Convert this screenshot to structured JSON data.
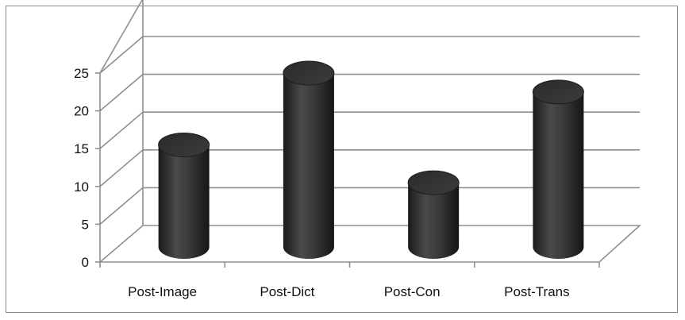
{
  "chart_data": {
    "type": "bar",
    "style": "3d-cylinder",
    "categories": [
      "Post-Image",
      "Post-Dict",
      "Post-Con",
      "Post-Trans"
    ],
    "values": [
      13.5,
      23,
      8.5,
      20.5
    ],
    "title": "",
    "xlabel": "",
    "ylabel": "",
    "ylim": [
      0,
      25
    ],
    "yticks": [
      0,
      5,
      10,
      15,
      20,
      25
    ],
    "grid": true,
    "legend": "none",
    "colors": {
      "bar": "#2e2e2e",
      "grid": "#8f8f8f",
      "text": "#111111"
    }
  }
}
